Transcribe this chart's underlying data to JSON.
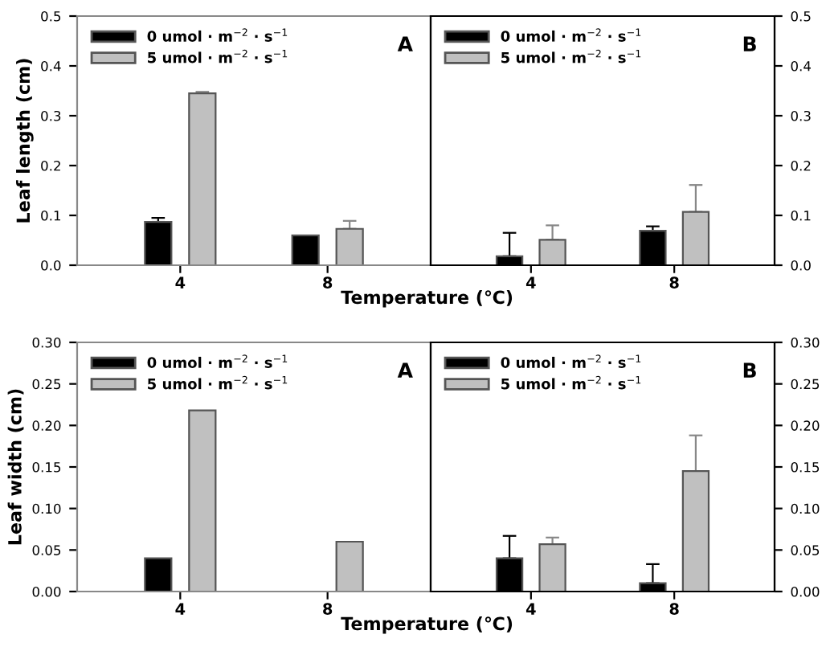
{
  "chart_data": [
    {
      "type": "bar",
      "categories": [
        "4",
        "8"
      ],
      "ylabel": "Leaf length (cm)",
      "xlabel": "Temperature (℃)",
      "annotations": [
        "A"
      ],
      "ylim": [
        0,
        0.5
      ],
      "yticks": [
        {
          "value": 0,
          "label": "0.0"
        },
        0.1,
        0.2,
        0.3,
        0.4,
        0.5
      ],
      "legend": "top left",
      "grid": false,
      "series": [
        {
          "name": "0 umol · m$^{−2}$ · s$^{−1}$",
          "color": "#000000",
          "values": [
            0.087,
            0.06
          ],
          "errors": [
            [
              0.087,
              0.095
            ],
            null
          ]
        },
        {
          "name": "5 umol · m$^{−2}$ · s$^{−1}$",
          "color": "#c0c0c0",
          "values": [
            0.345,
            0.073
          ],
          "errors": [
            [
              0.345,
              0.348
            ],
            [
              0.073,
              0.089
            ]
          ]
        }
      ]
    },
    {
      "type": "bar",
      "categories": [
        "4",
        "8"
      ],
      "annotations": [
        "B"
      ],
      "y2lim": [
        0,
        0.5
      ],
      "y2ticks": [
        {
          "value": 0,
          "label": "0.0"
        },
        0.1,
        0.2,
        0.3,
        0.4,
        0.5
      ],
      "legend": "top left",
      "grid": false,
      "series": [
        {
          "name": "0 umol · m$^{−2}$ · s$^{−1}$",
          "color": "#000000",
          "axis": "y2",
          "values": [
            0.018,
            0.069
          ],
          "errors": [
            [
              0.018,
              0.065
            ],
            [
              0.069,
              0.078
            ]
          ]
        },
        {
          "name": "5 umol · m$^{−2}$ · s$^{−1}$",
          "color": "#c0c0c0",
          "axis": "y2",
          "values": [
            0.051,
            0.107
          ],
          "errors": [
            [
              0.051,
              0.08
            ],
            [
              0.107,
              0.161
            ]
          ]
        }
      ]
    },
    {
      "type": "bar",
      "categories": [
        "4",
        "8"
      ],
      "ylabel": "Leaf width (cm)",
      "xlabel": "Temperature (℃)",
      "annotations": [
        "A"
      ],
      "ylim": [
        0,
        0.3
      ],
      "yticks": [
        {
          "value": 0,
          "label": "0.00"
        },
        {
          "value": 0.05,
          "label": "0.05"
        },
        {
          "value": 0.1,
          "label": "0.10"
        },
        {
          "value": 0.15,
          "label": "0.15"
        },
        {
          "value": 0.2,
          "label": "0.20"
        },
        {
          "value": 0.25,
          "label": "0.25"
        },
        {
          "value": 0.3,
          "label": "0.30"
        }
      ],
      "legend": "top left",
      "grid": false,
      "series": [
        {
          "name": "0 umol · m$^{−2}$ · s$^{−1}$",
          "color": "#000000",
          "values": [
            0.04,
            null
          ]
        },
        {
          "name": "5 umol · m$^{−2}$ · s$^{−1}$",
          "color": "#c0c0c0",
          "values": [
            0.218,
            0.06
          ]
        }
      ]
    },
    {
      "type": "bar",
      "categories": [
        "4",
        "8"
      ],
      "annotations": [
        "B"
      ],
      "y2lim": [
        0,
        0.3
      ],
      "y2ticks": [
        {
          "value": 0,
          "label": "0.00"
        },
        {
          "value": 0.05,
          "label": "0.05"
        },
        {
          "value": 0.1,
          "label": "0.10"
        },
        {
          "value": 0.15,
          "label": "0.15"
        },
        {
          "value": 0.2,
          "label": "0.20"
        },
        {
          "value": 0.25,
          "label": "0.25"
        },
        {
          "value": 0.3,
          "label": "0.30"
        }
      ],
      "legend": "top left",
      "grid": false,
      "series": [
        {
          "name": "0 umol · m$^{−2}$ · s$^{−1}$",
          "color": "#000000",
          "axis": "y2",
          "values": [
            0.04,
            0.01
          ],
          "errors": [
            [
              0.04,
              0.067
            ],
            [
              0.01,
              0.033
            ]
          ]
        },
        {
          "name": "5 umol · m$^{−2}$ · s$^{−1}$",
          "color": "#c0c0c0",
          "axis": "y2",
          "values": [
            0.057,
            0.145
          ],
          "errors": [
            [
              0.057,
              0.065
            ],
            [
              0.145,
              0.188
            ]
          ]
        }
      ]
    }
  ]
}
